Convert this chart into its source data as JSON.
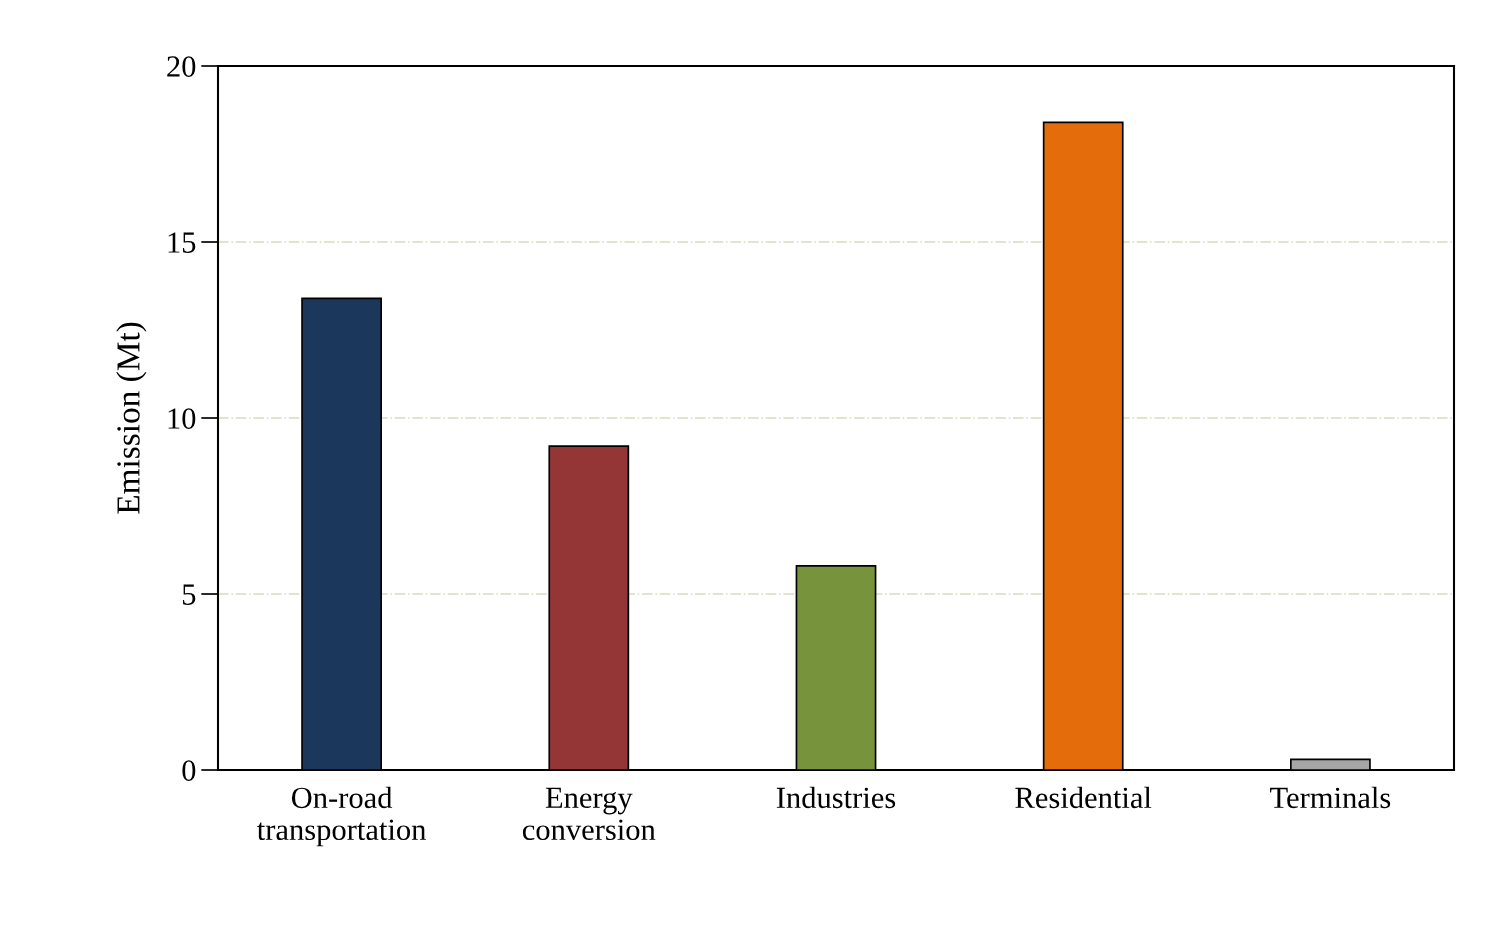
{
  "chart_data": {
    "type": "bar",
    "ylabel": "Emission (Mt)",
    "categories": [
      "On-road transportation",
      "Energy conversion",
      "Industries",
      "Residential",
      "Terminals"
    ],
    "values": [
      13.4,
      9.2,
      5.8,
      18.4,
      0.3
    ],
    "colors": [
      "#1b375c",
      "#943635",
      "#77933c",
      "#e46c0a",
      "#a6a6a6"
    ],
    "ylim": [
      0,
      20
    ],
    "yticks": [
      0,
      5,
      10,
      15,
      20
    ],
    "grid": "y"
  }
}
